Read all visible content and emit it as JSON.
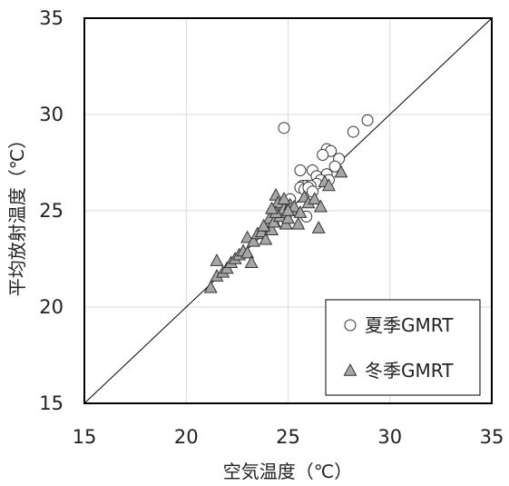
{
  "chart_data": {
    "type": "scatter",
    "title": "",
    "xlabel": "空気温度（℃）",
    "ylabel": "平均放射温度（℃）",
    "xlim": [
      15,
      35
    ],
    "ylim": [
      15,
      35
    ],
    "xticks": [
      "15",
      "20",
      "25",
      "30",
      "35"
    ],
    "yticks": [
      "15",
      "20",
      "25",
      "30",
      "35"
    ],
    "grid": true,
    "reference_line": "y = x",
    "legend_position": "bottom-right",
    "series": [
      {
        "name": "夏季GMRT",
        "marker": "circle",
        "fill": "#ffffff",
        "points": [
          [
            24.8,
            29.3
          ],
          [
            28.9,
            29.7
          ],
          [
            28.2,
            29.1
          ],
          [
            26.9,
            28.2
          ],
          [
            27.1,
            28.1
          ],
          [
            26.7,
            27.9
          ],
          [
            27.5,
            27.7
          ],
          [
            27.3,
            27.3
          ],
          [
            25.6,
            27.1
          ],
          [
            26.2,
            27.1
          ],
          [
            26.9,
            26.9
          ],
          [
            26.4,
            26.8
          ],
          [
            27.0,
            26.6
          ],
          [
            26.6,
            26.6
          ],
          [
            26.4,
            26.4
          ],
          [
            25.7,
            26.3
          ],
          [
            25.9,
            26.3
          ],
          [
            26.1,
            26.3
          ],
          [
            25.6,
            26.2
          ],
          [
            25.8,
            26.1
          ],
          [
            26.0,
            26.2
          ],
          [
            26.2,
            26.0
          ],
          [
            25.9,
            24.7
          ],
          [
            25.1,
            25.6
          ],
          [
            25.0,
            25.2
          ],
          [
            24.6,
            25.3
          ],
          [
            24.8,
            25.0
          ],
          [
            24.9,
            24.8
          ],
          [
            24.4,
            24.6
          ],
          [
            24.8,
            24.4
          ]
        ]
      },
      {
        "name": "冬季GMRT",
        "marker": "triangle",
        "fill": "#a6a6a6",
        "points": [
          [
            21.2,
            21.0
          ],
          [
            21.5,
            21.6
          ],
          [
            21.5,
            22.4
          ],
          [
            21.8,
            21.8
          ],
          [
            22.0,
            22.0
          ],
          [
            22.2,
            22.3
          ],
          [
            22.4,
            22.5
          ],
          [
            22.6,
            22.7
          ],
          [
            22.8,
            22.9
          ],
          [
            23.0,
            22.8
          ],
          [
            23.2,
            22.3
          ],
          [
            23.0,
            23.6
          ],
          [
            23.3,
            23.4
          ],
          [
            23.5,
            23.8
          ],
          [
            23.7,
            23.9
          ],
          [
            23.9,
            23.5
          ],
          [
            24.0,
            24.2
          ],
          [
            24.1,
            24.6
          ],
          [
            24.2,
            24.0
          ],
          [
            24.3,
            24.4
          ],
          [
            24.4,
            25.8
          ],
          [
            24.5,
            25.4
          ],
          [
            24.6,
            24.7
          ],
          [
            24.7,
            24.9
          ],
          [
            24.8,
            25.1
          ],
          [
            24.9,
            24.3
          ],
          [
            25.0,
            24.6
          ],
          [
            25.1,
            25.3
          ],
          [
            25.2,
            25.0
          ],
          [
            25.3,
            25.2
          ],
          [
            25.5,
            24.3
          ],
          [
            25.6,
            24.9
          ],
          [
            25.8,
            25.7
          ],
          [
            26.0,
            25.4
          ],
          [
            26.3,
            25.6
          ],
          [
            26.5,
            24.1
          ],
          [
            26.6,
            25.2
          ],
          [
            26.8,
            26.5
          ],
          [
            27.0,
            26.3
          ],
          [
            27.6,
            27.0
          ],
          [
            24.4,
            24.9
          ],
          [
            24.8,
            25.6
          ],
          [
            24.2,
            25.1
          ],
          [
            25.0,
            25.0
          ],
          [
            23.8,
            24.2
          ]
        ]
      }
    ]
  }
}
